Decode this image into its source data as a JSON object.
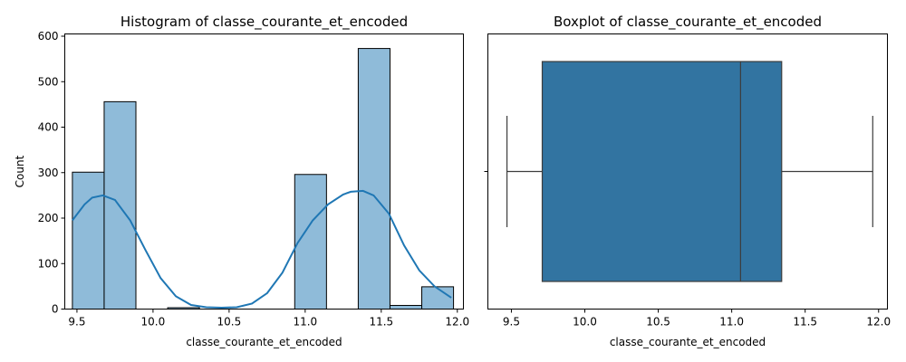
{
  "chart_data": [
    {
      "type": "histogram",
      "title": "Histogram of classe_courante_et_encoded",
      "xlabel": "classe_courante_et_encoded",
      "ylabel": "Count",
      "xlim": [
        9.42,
        12.04
      ],
      "ylim": [
        0,
        605
      ],
      "xticks": [
        9.5,
        10.0,
        10.5,
        11.0,
        11.5,
        12.0
      ],
      "xtick_labels": [
        "9.5",
        "10.0",
        "10.5",
        "11.0",
        "11.5",
        "12.0"
      ],
      "yticks": [
        0,
        100,
        200,
        300,
        400,
        500,
        600
      ],
      "ytick_labels": [
        "0",
        "100",
        "200",
        "300",
        "400",
        "500",
        "600"
      ],
      "bin_start": 9.47,
      "bin_width": 0.20875,
      "counts": [
        301,
        456,
        0,
        3,
        0,
        0,
        0,
        296,
        0,
        573,
        8,
        49
      ],
      "kde": {
        "x": [
          9.47,
          9.55,
          9.6,
          9.67,
          9.75,
          9.85,
          9.95,
          10.05,
          10.15,
          10.25,
          10.35,
          10.45,
          10.55,
          10.65,
          10.75,
          10.85,
          10.95,
          11.05,
          11.15,
          11.25,
          11.3,
          11.38,
          11.45,
          11.55,
          11.65,
          11.75,
          11.85,
          11.96
        ],
        "y": [
          195,
          230,
          245,
          250,
          240,
          195,
          130,
          68,
          28,
          9,
          4,
          3,
          4,
          12,
          35,
          80,
          145,
          195,
          230,
          252,
          258,
          260,
          250,
          210,
          140,
          85,
          50,
          25
        ]
      },
      "bar_color": "#8fbbd9",
      "line_color": "#1f77b4"
    },
    {
      "type": "boxplot",
      "title": "Boxplot of classe_courante_et_encoded",
      "xlabel": "classe_courante_et_encoded",
      "xlim": [
        9.34,
        12.06
      ],
      "xticks": [
        9.5,
        10.0,
        10.5,
        11.0,
        11.5,
        12.0
      ],
      "xtick_labels": [
        "9.5",
        "10.0",
        "10.5",
        "11.0",
        "11.5",
        "12.0"
      ],
      "whisker_low": 9.47,
      "q1": 9.71,
      "median": 11.06,
      "q3": 11.34,
      "whisker_high": 11.96,
      "box_color": "#3274a1",
      "line_color": "#3d3d3d"
    }
  ]
}
